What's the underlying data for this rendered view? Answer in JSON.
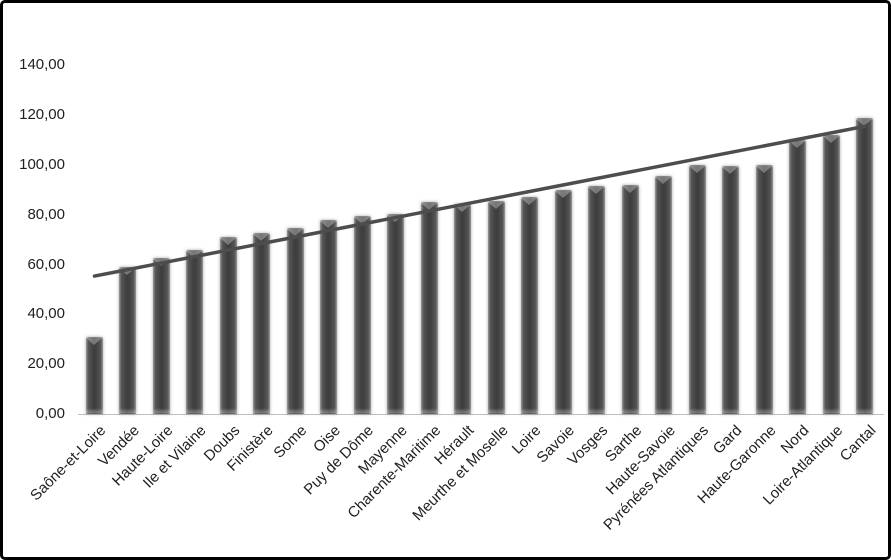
{
  "chart_data": {
    "type": "bar",
    "title": "",
    "xlabel": "",
    "ylabel": "",
    "categories": [
      "Saône-et-Loire",
      "Vendée",
      "Haute-Loire",
      "Ile et Vilaine",
      "Doubs",
      "Finistère",
      "Some",
      "Oise",
      "Puy de Dôme",
      "Mayenne",
      "Charente-Maritime",
      "Hérault",
      "Meurthe et Moselle",
      "Loire",
      "Savoie",
      "Vosges",
      "Sarthe",
      "Haute-Savoie",
      "Pyrénées Atlantiques",
      "Gard",
      "Haute-Garonne",
      "Nord",
      "Loire-Atlantique",
      "Cantal"
    ],
    "values": [
      31,
      59,
      62.5,
      66,
      71,
      72.5,
      74.5,
      78,
      79.5,
      80.5,
      85,
      84.5,
      85.5,
      87,
      90,
      91.5,
      92,
      95.5,
      100,
      99.5,
      100,
      110,
      112,
      119
    ],
    "trendline": {
      "name": "linear-trend",
      "start_value": 55.4,
      "end_value": 115.5
    },
    "ylim": [
      0,
      140
    ],
    "y_ticks": [
      {
        "value": 140,
        "label": "140,00"
      },
      {
        "value": 120,
        "label": "120,00"
      },
      {
        "value": 100,
        "label": "100,00"
      },
      {
        "value": 80,
        "label": "80,00"
      },
      {
        "value": 60,
        "label": "60,00"
      },
      {
        "value": 40,
        "label": "40,00"
      },
      {
        "value": 20,
        "label": "20,00"
      },
      {
        "value": 0,
        "label": "0,00"
      }
    ],
    "grid": false,
    "legend": false,
    "decimal_separator": ","
  },
  "colors": {
    "bar_fill": "#3e3e3e",
    "bar_edge_highlight": "#9a9a9a",
    "trend_line": "#4d4d4d",
    "axis_line": "#bfbfbf",
    "text": "#1f1f1f",
    "background": "#ffffff",
    "frame_border": "#000000"
  }
}
